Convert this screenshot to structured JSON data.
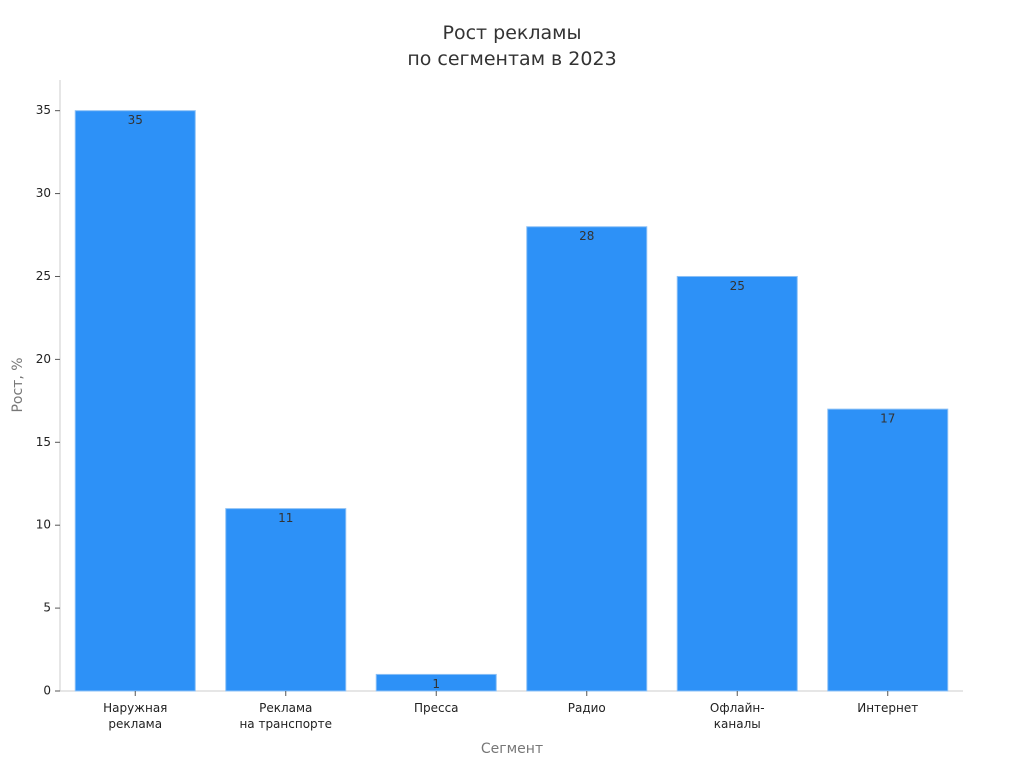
{
  "chart_data": {
    "type": "bar",
    "title": "Рост рекламы\nпо сегментам в 2023",
    "x_label": "Сегмент",
    "y_label": "Рост, %",
    "categories": [
      "Наружная\nреклама",
      "Реклама\nна транспорте",
      "Пресса",
      "Радио",
      "Офлайн-\nканалы",
      "Интернет"
    ],
    "values": [
      35,
      11,
      1,
      28,
      25,
      17
    ],
    "color": "#2d91f7",
    "ylim": [
      0,
      36.85
    ],
    "yticks": [
      0,
      5,
      10,
      15,
      20,
      25,
      30,
      35
    ],
    "grid": false
  }
}
